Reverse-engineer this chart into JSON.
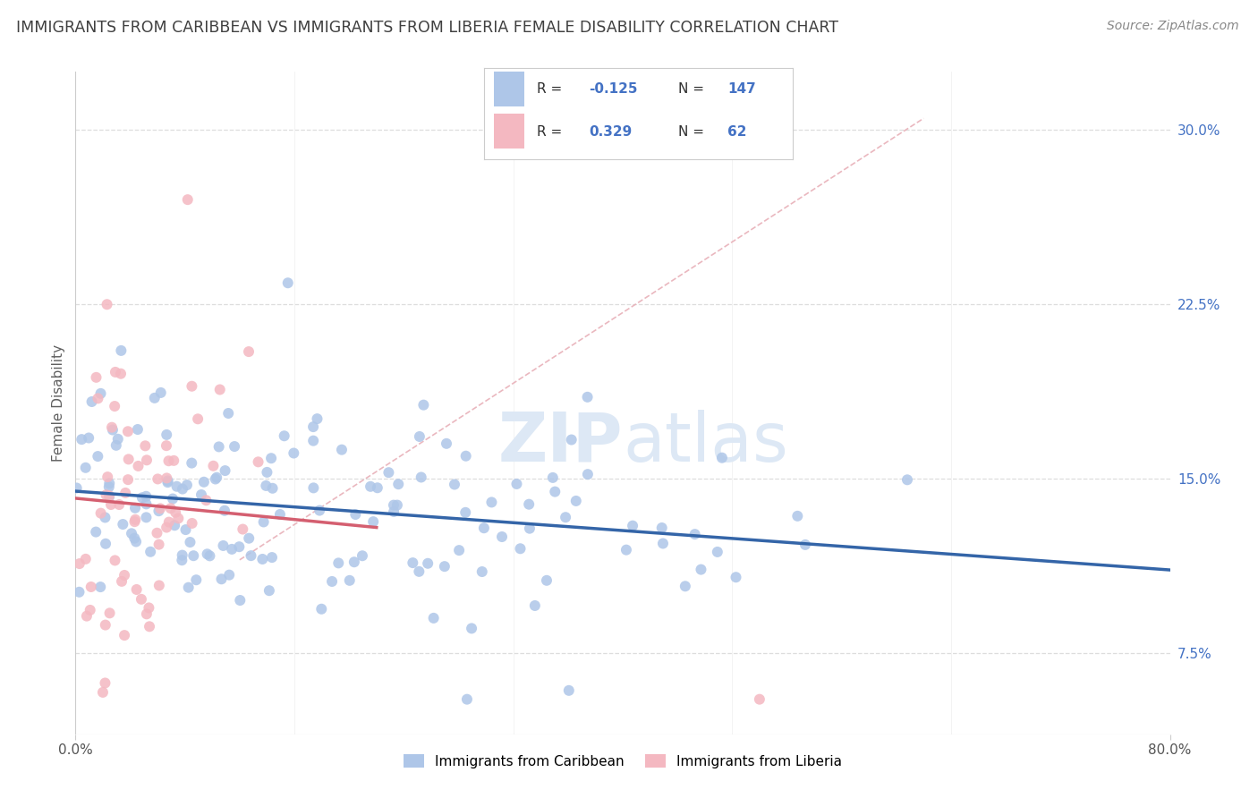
{
  "title": "IMMIGRANTS FROM CARIBBEAN VS IMMIGRANTS FROM LIBERIA FEMALE DISABILITY CORRELATION CHART",
  "source": "Source: ZipAtlas.com",
  "ylabel": "Female Disability",
  "xlim": [
    0.0,
    0.8
  ],
  "ylim": [
    0.04,
    0.325
  ],
  "yticks": [
    0.075,
    0.15,
    0.225,
    0.3
  ],
  "ytick_labels": [
    "7.5%",
    "15.0%",
    "22.5%",
    "30.0%"
  ],
  "caribbean_R": -0.125,
  "caribbean_N": 147,
  "liberia_R": 0.329,
  "liberia_N": 62,
  "caribbean_color": "#aec6e8",
  "liberia_color": "#f4b8c1",
  "caribbean_line_color": "#3465a8",
  "liberia_line_color": "#d45f70",
  "diagonal_line_color": "#e8b0b8",
  "background_color": "#ffffff",
  "grid_color": "#dddddd",
  "title_color": "#404040",
  "axis_label_color": "#4472c4",
  "legend_R_color": "#4472c4",
  "watermark_color": "#dde8f5",
  "source_color": "#888888"
}
